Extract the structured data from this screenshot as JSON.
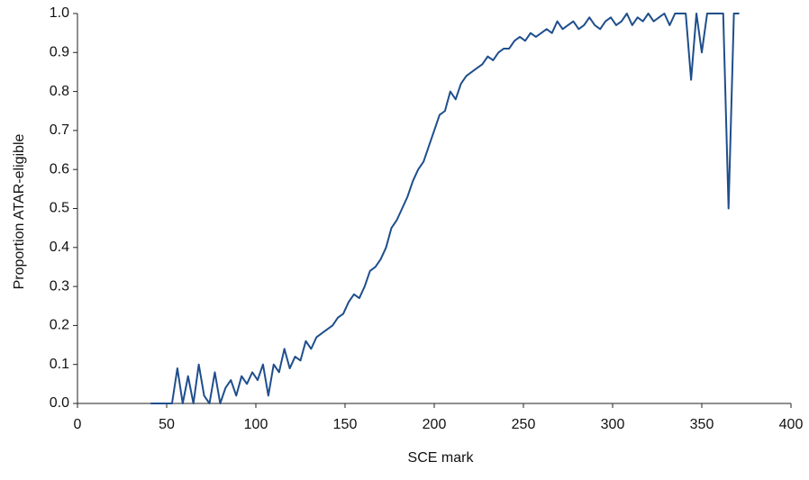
{
  "chart_data": {
    "type": "line",
    "xlabel": "SCE mark",
    "ylabel": "Proportion ATAR-eligible",
    "x": [
      41,
      44,
      47,
      50,
      53,
      56,
      59,
      62,
      65,
      68,
      71,
      74,
      77,
      80,
      83,
      86,
      89,
      92,
      95,
      98,
      101,
      104,
      107,
      110,
      113,
      116,
      119,
      122,
      125,
      128,
      131,
      134,
      137,
      140,
      143,
      146,
      149,
      152,
      155,
      158,
      161,
      164,
      167,
      170,
      173,
      176,
      179,
      182,
      185,
      188,
      191,
      194,
      197,
      200,
      203,
      206,
      209,
      212,
      215,
      218,
      221,
      224,
      227,
      230,
      233,
      236,
      239,
      242,
      245,
      248,
      251,
      254,
      257,
      260,
      263,
      266,
      269,
      272,
      275,
      278,
      281,
      284,
      287,
      290,
      293,
      296,
      299,
      302,
      305,
      308,
      311,
      314,
      317,
      320,
      323,
      326,
      329,
      332,
      335,
      338,
      341,
      344,
      347,
      350,
      353,
      356,
      359,
      362,
      365,
      368,
      371
    ],
    "series": [
      {
        "color": "#1f4e8c",
        "values": [
          0,
          0,
          0,
          0,
          0,
          0.09,
          0,
          0.07,
          0,
          0.1,
          0.02,
          0,
          0.08,
          0,
          0.04,
          0.06,
          0.02,
          0.07,
          0.05,
          0.08,
          0.06,
          0.1,
          0.02,
          0.1,
          0.08,
          0.14,
          0.09,
          0.12,
          0.11,
          0.16,
          0.14,
          0.17,
          0.18,
          0.19,
          0.2,
          0.22,
          0.23,
          0.26,
          0.28,
          0.27,
          0.3,
          0.34,
          0.35,
          0.37,
          0.4,
          0.45,
          0.47,
          0.5,
          0.53,
          0.57,
          0.6,
          0.62,
          0.66,
          0.7,
          0.74,
          0.75,
          0.8,
          0.78,
          0.82,
          0.84,
          0.85,
          0.86,
          0.87,
          0.89,
          0.88,
          0.9,
          0.91,
          0.91,
          0.93,
          0.94,
          0.93,
          0.95,
          0.94,
          0.95,
          0.96,
          0.95,
          0.98,
          0.96,
          0.97,
          0.98,
          0.96,
          0.97,
          0.99,
          0.97,
          0.96,
          0.98,
          0.99,
          0.97,
          0.98,
          1.0,
          0.97,
          0.99,
          0.98,
          1.0,
          0.98,
          0.99,
          1.0,
          0.97,
          1.0,
          1.0,
          1.0,
          0.83,
          1.0,
          0.9,
          1.0,
          1.0,
          1.0,
          1.0,
          0.5,
          1.0,
          1.0
        ]
      }
    ],
    "xlim": [
      0,
      400
    ],
    "xticks": [
      0,
      50,
      100,
      150,
      200,
      250,
      300,
      350,
      400
    ],
    "ylim": [
      0,
      1
    ],
    "yticks": [
      {
        "value": 0,
        "label": "0.0"
      },
      0.1,
      0.2,
      0.3,
      0.4,
      0.5,
      0.6,
      0.7,
      0.8,
      0.9,
      {
        "value": 1,
        "label": "1.0"
      }
    ]
  }
}
